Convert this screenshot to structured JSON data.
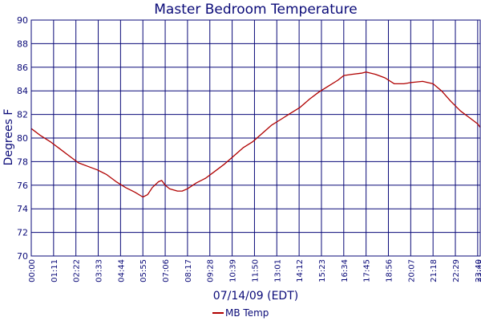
{
  "chart_data": {
    "type": "line",
    "title": "Master Bedroom Temperature",
    "xlabel": "07/14/09 (EDT)",
    "ylabel": "Degrees F",
    "ylim": [
      70,
      90
    ],
    "yticks": [
      70,
      72,
      74,
      76,
      78,
      80,
      82,
      84,
      86,
      88,
      90
    ],
    "xlim": [
      "00:00",
      "23:48"
    ],
    "xticks": [
      "00:00",
      "01:11",
      "02:22",
      "03:33",
      "04:44",
      "05:55",
      "07:06",
      "08:17",
      "09:28",
      "10:39",
      "11:50",
      "13:01",
      "14:12",
      "15:23",
      "16:34",
      "17:45",
      "18:56",
      "20:07",
      "21:18",
      "22:29",
      "23:40",
      "23:48"
    ],
    "grid": true,
    "legend_position": "bottom",
    "colors": {
      "series": "#b00000",
      "text": "#0a0a78",
      "grid": "#0a0a78"
    },
    "series": [
      {
        "name": "MB Temp",
        "points": [
          [
            "00:00",
            80.8
          ],
          [
            "00:30",
            80.2
          ],
          [
            "01:00",
            79.7
          ],
          [
            "01:30",
            79.1
          ],
          [
            "02:00",
            78.5
          ],
          [
            "02:30",
            77.9
          ],
          [
            "03:00",
            77.6
          ],
          [
            "03:30",
            77.3
          ],
          [
            "04:00",
            76.9
          ],
          [
            "04:30",
            76.3
          ],
          [
            "05:00",
            75.8
          ],
          [
            "05:30",
            75.4
          ],
          [
            "05:55",
            75.0
          ],
          [
            "06:10",
            75.2
          ],
          [
            "06:25",
            75.8
          ],
          [
            "06:45",
            76.3
          ],
          [
            "06:55",
            76.4
          ],
          [
            "07:06",
            76.0
          ],
          [
            "07:20",
            75.7
          ],
          [
            "07:45",
            75.5
          ],
          [
            "08:00",
            75.5
          ],
          [
            "08:17",
            75.7
          ],
          [
            "08:45",
            76.2
          ],
          [
            "09:15",
            76.6
          ],
          [
            "09:45",
            77.2
          ],
          [
            "10:15",
            77.8
          ],
          [
            "10:45",
            78.5
          ],
          [
            "11:15",
            79.2
          ],
          [
            "11:45",
            79.7
          ],
          [
            "12:15",
            80.4
          ],
          [
            "12:45",
            81.1
          ],
          [
            "13:15",
            81.6
          ],
          [
            "13:45",
            82.1
          ],
          [
            "14:15",
            82.6
          ],
          [
            "14:45",
            83.3
          ],
          [
            "15:15",
            83.9
          ],
          [
            "15:45",
            84.4
          ],
          [
            "16:15",
            84.9
          ],
          [
            "16:34",
            85.3
          ],
          [
            "17:00",
            85.4
          ],
          [
            "17:30",
            85.5
          ],
          [
            "17:45",
            85.6
          ],
          [
            "18:15",
            85.4
          ],
          [
            "18:45",
            85.1
          ],
          [
            "19:15",
            84.6
          ],
          [
            "19:45",
            84.6
          ],
          [
            "20:07",
            84.7
          ],
          [
            "20:45",
            84.8
          ],
          [
            "21:18",
            84.6
          ],
          [
            "21:45",
            84.0
          ],
          [
            "22:15",
            83.1
          ],
          [
            "22:45",
            82.3
          ],
          [
            "23:15",
            81.7
          ],
          [
            "23:40",
            81.2
          ],
          [
            "23:48",
            80.9
          ]
        ]
      }
    ]
  }
}
